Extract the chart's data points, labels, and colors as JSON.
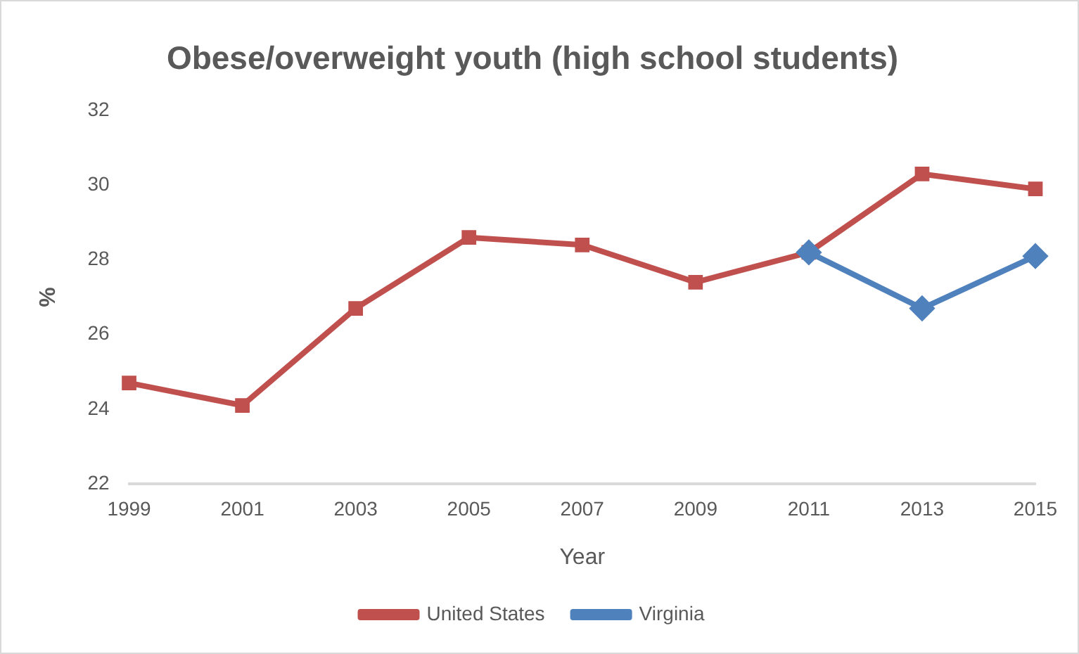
{
  "chart_data": {
    "type": "line",
    "title": "Obese/overweight youth (high school students)",
    "xlabel": "Year",
    "ylabel": "%",
    "categories": [
      "1999",
      "2001",
      "2003",
      "2005",
      "2007",
      "2009",
      "2011",
      "2013",
      "2015"
    ],
    "series": [
      {
        "name": "United States",
        "color": "#c0504d",
        "marker": "square",
        "values": [
          24.7,
          24.1,
          26.7,
          28.6,
          28.4,
          27.4,
          28.2,
          30.3,
          29.9
        ]
      },
      {
        "name": "Virginia",
        "color": "#4f81bd",
        "marker": "diamond",
        "values": [
          null,
          null,
          null,
          null,
          null,
          null,
          28.2,
          26.7,
          28.1
        ]
      }
    ],
    "ylim": [
      22,
      32
    ],
    "yticks": [
      22,
      24,
      26,
      28,
      30,
      32
    ],
    "grid": false,
    "legend": "bottom",
    "line_style": "solid"
  }
}
